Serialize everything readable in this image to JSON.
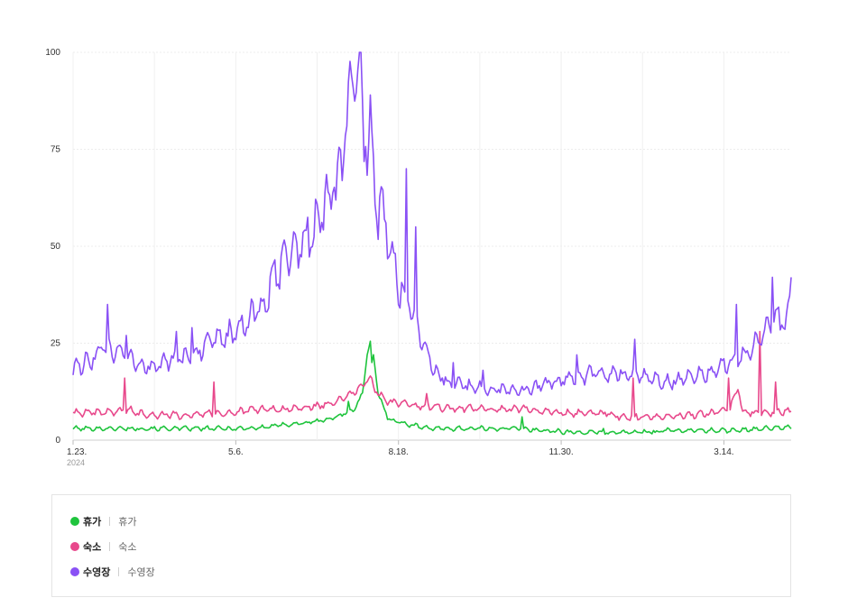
{
  "chart_data": {
    "type": "line",
    "x_ticks": [
      {
        "label": "1.23.",
        "sub": "2024"
      },
      {
        "label": "5.6.",
        "sub": ""
      },
      {
        "label": "8.18.",
        "sub": ""
      },
      {
        "label": "11.30.",
        "sub": ""
      },
      {
        "label": "3.14.",
        "sub": ""
      }
    ],
    "y_ticks": [
      "0",
      "25",
      "50",
      "75",
      "100"
    ],
    "ylim": [
      0,
      100
    ],
    "grid": true,
    "legend_position": "bottom",
    "x_start": "2024-01-23",
    "x_end": "2025-05-28",
    "series": [
      {
        "name": "휴가",
        "desc": "휴가",
        "color": "#1fc43d",
        "points": [
          [
            0,
            3
          ],
          [
            15,
            3
          ],
          [
            30,
            3
          ],
          [
            45,
            3
          ],
          [
            60,
            3
          ],
          [
            75,
            3
          ],
          [
            90,
            3
          ],
          [
            105,
            3
          ],
          [
            120,
            3.2
          ],
          [
            135,
            4
          ],
          [
            150,
            4.5
          ],
          [
            165,
            5.5
          ],
          [
            180,
            8
          ],
          [
            185,
            12
          ],
          [
            188,
            22
          ],
          [
            190,
            25
          ],
          [
            192,
            22
          ],
          [
            195,
            12
          ],
          [
            198,
            9
          ],
          [
            201,
            6
          ],
          [
            205,
            5
          ],
          [
            215,
            4
          ],
          [
            230,
            3
          ],
          [
            250,
            3
          ],
          [
            270,
            3
          ],
          [
            285,
            3
          ],
          [
            300,
            2.5
          ],
          [
            320,
            2
          ],
          [
            340,
            2
          ],
          [
            360,
            2
          ],
          [
            380,
            2.5
          ],
          [
            400,
            2.5
          ],
          [
            420,
            2.5
          ],
          [
            440,
            3
          ],
          [
            459,
            3.3
          ]
        ],
        "spikes": [
          [
            176,
            10
          ],
          [
            191,
            20
          ],
          [
            287,
            6
          ],
          [
            339,
            3
          ],
          [
            372,
            2
          ],
          [
            421,
            3
          ]
        ]
      },
      {
        "name": "숙소",
        "desc": "숙소",
        "color": "#e8498c",
        "points": [
          [
            0,
            7
          ],
          [
            15,
            7
          ],
          [
            30,
            7.5
          ],
          [
            35,
            8
          ],
          [
            40,
            7
          ],
          [
            55,
            6.5
          ],
          [
            70,
            6.5
          ],
          [
            85,
            7
          ],
          [
            100,
            7
          ],
          [
            120,
            8
          ],
          [
            140,
            8
          ],
          [
            160,
            9
          ],
          [
            175,
            11
          ],
          [
            185,
            14
          ],
          [
            190,
            16
          ],
          [
            193,
            13
          ],
          [
            197,
            11.5
          ],
          [
            201,
            10
          ],
          [
            215,
            9
          ],
          [
            230,
            8.5
          ],
          [
            260,
            8
          ],
          [
            290,
            8
          ],
          [
            310,
            7
          ],
          [
            340,
            7
          ],
          [
            345,
            6.5
          ],
          [
            350,
            6
          ],
          [
            360,
            6
          ],
          [
            380,
            6
          ],
          [
            400,
            6.5
          ],
          [
            420,
            8
          ],
          [
            425,
            14
          ],
          [
            428,
            7
          ],
          [
            440,
            7
          ],
          [
            459,
            7.5
          ]
        ],
        "spikes": [
          [
            33,
            16
          ],
          [
            90,
            15
          ],
          [
            191,
            16
          ],
          [
            226,
            12
          ],
          [
            358,
            16
          ],
          [
            419,
            16
          ],
          [
            439,
            28
          ],
          [
            449,
            15
          ]
        ]
      },
      {
        "name": "수영장",
        "desc": "수영장",
        "color": "#8a51f5",
        "points": [
          [
            0,
            18
          ],
          [
            15,
            22
          ],
          [
            20,
            24
          ],
          [
            30,
            22
          ],
          [
            45,
            19
          ],
          [
            60,
            20
          ],
          [
            75,
            22
          ],
          [
            90,
            25
          ],
          [
            105,
            28
          ],
          [
            120,
            34
          ],
          [
            130,
            43
          ],
          [
            140,
            48
          ],
          [
            150,
            52
          ],
          [
            160,
            60
          ],
          [
            170,
            68
          ],
          [
            176,
            85
          ],
          [
            179,
            96
          ],
          [
            181,
            100
          ],
          [
            183,
            92
          ],
          [
            186,
            80
          ],
          [
            190,
            74
          ],
          [
            195,
            60
          ],
          [
            200,
            55
          ],
          [
            205,
            45
          ],
          [
            210,
            38
          ],
          [
            215,
            36
          ],
          [
            220,
            30
          ],
          [
            225,
            25
          ],
          [
            230,
            18
          ],
          [
            240,
            15
          ],
          [
            250,
            14
          ],
          [
            260,
            13.5
          ],
          [
            270,
            13
          ],
          [
            280,
            13
          ],
          [
            290,
            13
          ],
          [
            300,
            14
          ],
          [
            310,
            15
          ],
          [
            320,
            16
          ],
          [
            330,
            17
          ],
          [
            340,
            17
          ],
          [
            350,
            17
          ],
          [
            360,
            17
          ],
          [
            370,
            16
          ],
          [
            380,
            15
          ],
          [
            390,
            16
          ],
          [
            400,
            17
          ],
          [
            410,
            18
          ],
          [
            420,
            20
          ],
          [
            430,
            22
          ],
          [
            440,
            26
          ],
          [
            445,
            30
          ],
          [
            450,
            33
          ],
          [
            455,
            30
          ],
          [
            459,
            38
          ]
        ],
        "spikes": [
          [
            22,
            35
          ],
          [
            34,
            27
          ],
          [
            66,
            28
          ],
          [
            76,
            29
          ],
          [
            190,
            89
          ],
          [
            213,
            70
          ],
          [
            219,
            55
          ],
          [
            243,
            20
          ],
          [
            262,
            18
          ],
          [
            322,
            22
          ],
          [
            359,
            26
          ],
          [
            400,
            19
          ],
          [
            424,
            35
          ],
          [
            447,
            42
          ],
          [
            459,
            42
          ]
        ]
      }
    ]
  }
}
